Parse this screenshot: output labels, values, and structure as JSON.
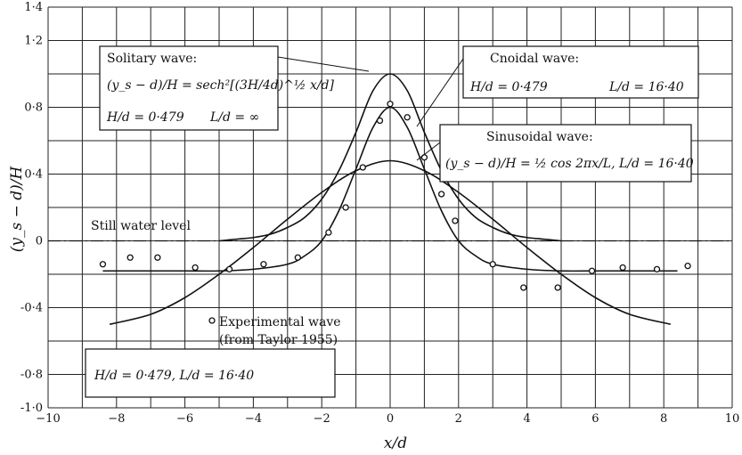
{
  "chart_data": {
    "type": "line",
    "xlabel": "x/d",
    "ylabel": "(y_s − d)/H",
    "xlim": [
      -10,
      10
    ],
    "ylim": [
      -1.0,
      1.4
    ],
    "grid": true,
    "x_ticks": [
      "−10",
      "−8",
      "−6",
      "−4",
      "−2",
      "0",
      "2",
      "4",
      "6",
      "8",
      "10"
    ],
    "y_ticks": [
      "1·4",
      "1·2",
      "0·8",
      "0·4",
      "0",
      "-0·4",
      "-0·8",
      "-1·0"
    ],
    "y_tick_values": [
      1.4,
      1.2,
      0.8,
      0.4,
      0,
      -0.4,
      -0.8,
      -1.0
    ],
    "series": [
      {
        "name": "Solitary wave",
        "x": [
          -5,
          -4.5,
          -4,
          -3.5,
          -3,
          -2.5,
          -2,
          -1.5,
          -1,
          -0.5,
          0,
          0.5,
          1,
          1.5,
          2,
          2.5,
          3,
          3.5,
          4,
          4.5,
          5
        ],
        "y": [
          0.0,
          0.01,
          0.02,
          0.04,
          0.08,
          0.14,
          0.25,
          0.42,
          0.65,
          0.9,
          1.0,
          0.9,
          0.65,
          0.42,
          0.25,
          0.14,
          0.08,
          0.04,
          0.02,
          0.01,
          0.0
        ]
      },
      {
        "name": "Cnoidal wave",
        "x": [
          -8.4,
          -7,
          -6,
          -5,
          -4,
          -3,
          -2.5,
          -2,
          -1.5,
          -1,
          -0.5,
          0,
          0.5,
          1,
          1.5,
          2,
          2.5,
          3,
          4,
          5,
          6,
          7,
          8.4
        ],
        "y": [
          -0.18,
          -0.18,
          -0.18,
          -0.18,
          -0.17,
          -0.14,
          -0.09,
          0.0,
          0.18,
          0.43,
          0.68,
          0.8,
          0.68,
          0.43,
          0.18,
          0.0,
          -0.09,
          -0.14,
          -0.17,
          -0.18,
          -0.18,
          -0.18,
          -0.18
        ]
      },
      {
        "name": "Sinusoidal wave",
        "x": [
          -8.2,
          -7,
          -6,
          -5,
          -4,
          -3,
          -2,
          -1,
          0,
          1,
          2,
          3,
          4,
          5,
          6,
          7,
          8.2
        ],
        "y": [
          -0.5,
          -0.44,
          -0.34,
          -0.2,
          -0.04,
          0.13,
          0.29,
          0.42,
          0.48,
          0.42,
          0.29,
          0.13,
          -0.04,
          -0.2,
          -0.34,
          -0.44,
          -0.5
        ]
      }
    ],
    "experimental_points": {
      "label": "Experimental wave",
      "source": "(from Taylor 1955)",
      "x": [
        -8.4,
        -7.6,
        -6.8,
        -5.7,
        -4.7,
        -3.7,
        -2.7,
        -1.8,
        -1.3,
        -0.8,
        -0.3,
        0,
        0.5,
        1,
        1.5,
        1.9,
        3,
        3.9,
        4.9,
        5.9,
        6.8,
        7.8,
        8.7
      ],
      "y": [
        -0.14,
        -0.1,
        -0.1,
        -0.16,
        -0.17,
        -0.14,
        -0.1,
        0.05,
        0.2,
        0.44,
        0.72,
        0.82,
        0.74,
        0.5,
        0.28,
        0.12,
        -0.14,
        -0.28,
        -0.28,
        -0.18,
        -0.16,
        -0.17,
        -0.15
      ]
    },
    "annotations": {
      "solitary_title": "Solitary wave:",
      "solitary_formula": "(y_s − d)/H = sech²[(3H/4d)^½ x/d]",
      "solitary_params_h": "H/d = 0·479",
      "solitary_params_l": "L/d = ∞",
      "cnoidal_title": "Cnoidal wave:",
      "cnoidal_params_h": "H/d = 0·479",
      "cnoidal_params_l": "L/d = 16·40",
      "sinusoidal_title": "Sinusoidal wave:",
      "sinusoidal_formula": "(y_s − d)/H = ½ cos 2πx/L, L/d = 16·40",
      "still_water": "Still water level",
      "experimental_label": "Experimental wave",
      "experimental_source": "(from Taylor 1955)",
      "bottom_params": "H/d = 0·479, L/d = 16·40"
    }
  }
}
